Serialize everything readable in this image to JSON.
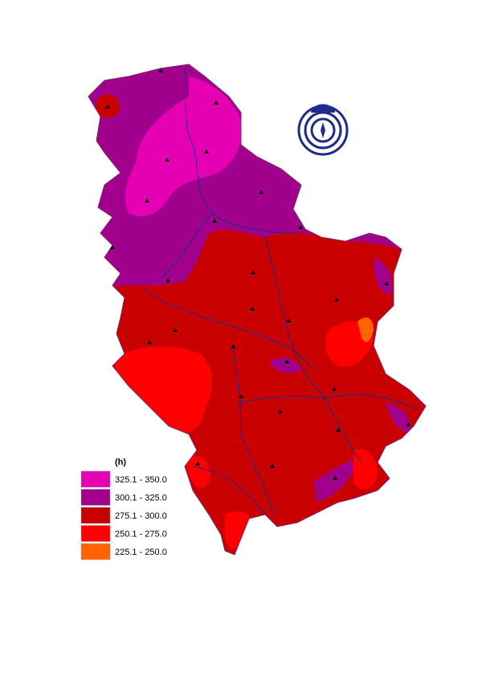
{
  "legend": {
    "title": "(h)",
    "items": [
      {
        "label": "325.1 - 350.0",
        "color": "#e600b4"
      },
      {
        "label": "300.1 - 325.0",
        "color": "#a0008c"
      },
      {
        "label": "275.1 - 300.0",
        "color": "#c80000"
      },
      {
        "label": "250.1 - 275.0",
        "color": "#ff0000"
      },
      {
        "label": "225.1 - 250.0",
        "color": "#ff6400"
      }
    ]
  }
}
